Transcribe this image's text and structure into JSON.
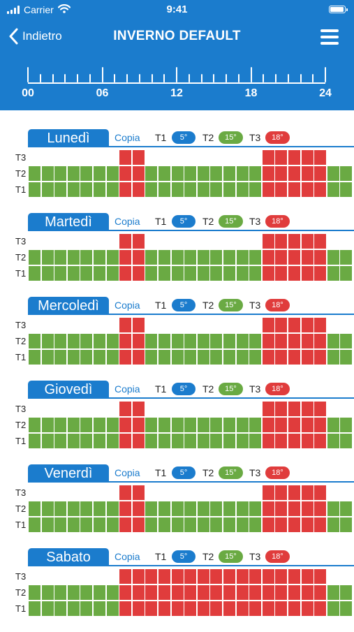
{
  "status_bar": {
    "carrier": "Carrier",
    "time": "9:41",
    "battery_level": 1.0
  },
  "nav": {
    "back_label": "Indietro",
    "title": "INVERNO DEFAULT",
    "menu_icon": "hamburger-menu-icon",
    "back_icon": "chevron-left-icon"
  },
  "ruler": {
    "labels": [
      "00",
      "06",
      "12",
      "18",
      "24"
    ]
  },
  "colors": {
    "accent": "#1b7ccd",
    "t1": "#1b7ccd",
    "t2": "#6aaa43",
    "t3": "#e03c3c",
    "empty": "#ffffff"
  },
  "levels": {
    "t1_label": "T1",
    "t2_label": "T2",
    "t3_label": "T3",
    "t1_temp": "5°",
    "t2_temp": "15°",
    "t3_temp": "18°"
  },
  "copy_label": "Copia",
  "days": [
    {
      "name": "Lunedì",
      "schedule": [
        2,
        2,
        2,
        2,
        2,
        2,
        2,
        3,
        3,
        2,
        2,
        2,
        2,
        2,
        2,
        2,
        2,
        2,
        3,
        3,
        3,
        3,
        3,
        2,
        2
      ]
    },
    {
      "name": "Martedì",
      "schedule": [
        2,
        2,
        2,
        2,
        2,
        2,
        2,
        3,
        3,
        2,
        2,
        2,
        2,
        2,
        2,
        2,
        2,
        2,
        3,
        3,
        3,
        3,
        3,
        2,
        2
      ]
    },
    {
      "name": "Mercoledì",
      "schedule": [
        2,
        2,
        2,
        2,
        2,
        2,
        2,
        3,
        3,
        2,
        2,
        2,
        2,
        2,
        2,
        2,
        2,
        2,
        3,
        3,
        3,
        3,
        3,
        2,
        2
      ]
    },
    {
      "name": "Giovedì",
      "schedule": [
        2,
        2,
        2,
        2,
        2,
        2,
        2,
        3,
        3,
        2,
        2,
        2,
        2,
        2,
        2,
        2,
        2,
        2,
        3,
        3,
        3,
        3,
        3,
        2,
        2
      ]
    },
    {
      "name": "Venerdì",
      "schedule": [
        2,
        2,
        2,
        2,
        2,
        2,
        2,
        3,
        3,
        2,
        2,
        2,
        2,
        2,
        2,
        2,
        2,
        2,
        3,
        3,
        3,
        3,
        3,
        2,
        2
      ]
    },
    {
      "name": "Sabato",
      "schedule": [
        2,
        2,
        2,
        2,
        2,
        2,
        2,
        3,
        3,
        3,
        3,
        3,
        3,
        3,
        3,
        3,
        3,
        3,
        3,
        3,
        3,
        3,
        3,
        2,
        2
      ]
    }
  ]
}
